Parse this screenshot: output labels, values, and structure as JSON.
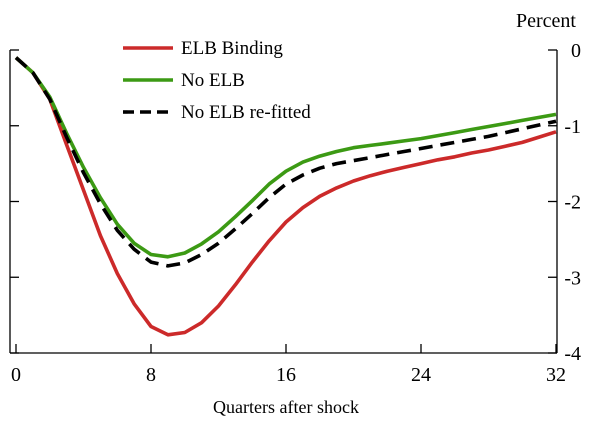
{
  "chart_data": {
    "type": "line",
    "title": "",
    "xlabel": "Quarters after shock",
    "ylabel": "",
    "y_unit_label": "Percent",
    "xlim": [
      0,
      32
    ],
    "ylim": [
      -4,
      0
    ],
    "x_ticks": [
      0,
      8,
      16,
      24,
      32
    ],
    "y_ticks": [
      0,
      -1,
      -2,
      -3,
      -4
    ],
    "grid": false,
    "legend_position": "top-left",
    "x": [
      0,
      1,
      2,
      3,
      4,
      5,
      6,
      7,
      8,
      9,
      10,
      11,
      12,
      13,
      14,
      15,
      16,
      17,
      18,
      19,
      20,
      21,
      22,
      23,
      24,
      25,
      26,
      27,
      28,
      29,
      30,
      31,
      32
    ],
    "series": [
      {
        "name": "ELB Binding",
        "color": "#cc2a2a",
        "style": "solid",
        "values": [
          -0.1,
          -0.3,
          -0.65,
          -1.25,
          -1.85,
          -2.45,
          -2.95,
          -3.35,
          -3.65,
          -3.76,
          -3.73,
          -3.6,
          -3.38,
          -3.1,
          -2.8,
          -2.52,
          -2.27,
          -2.08,
          -1.93,
          -1.82,
          -1.73,
          -1.66,
          -1.6,
          -1.55,
          -1.5,
          -1.45,
          -1.41,
          -1.36,
          -1.32,
          -1.27,
          -1.22,
          -1.15,
          -1.08
        ]
      },
      {
        "name": "No ELB",
        "color": "#3c9a14",
        "style": "solid",
        "values": [
          -0.1,
          -0.3,
          -0.62,
          -1.1,
          -1.55,
          -1.95,
          -2.3,
          -2.55,
          -2.7,
          -2.73,
          -2.68,
          -2.56,
          -2.4,
          -2.2,
          -1.99,
          -1.77,
          -1.6,
          -1.48,
          -1.4,
          -1.34,
          -1.29,
          -1.26,
          -1.23,
          -1.2,
          -1.17,
          -1.13,
          -1.09,
          -1.05,
          -1.01,
          -0.97,
          -0.93,
          -0.89,
          -0.85
        ]
      },
      {
        "name": "No ELB re-fitted",
        "color": "#000000",
        "style": "dashed",
        "values": [
          -0.1,
          -0.3,
          -0.65,
          -1.15,
          -1.62,
          -2.03,
          -2.38,
          -2.63,
          -2.8,
          -2.85,
          -2.81,
          -2.7,
          -2.55,
          -2.36,
          -2.16,
          -1.95,
          -1.77,
          -1.65,
          -1.56,
          -1.5,
          -1.46,
          -1.42,
          -1.38,
          -1.34,
          -1.3,
          -1.26,
          -1.22,
          -1.18,
          -1.14,
          -1.09,
          -1.04,
          -0.99,
          -0.94
        ]
      }
    ]
  }
}
